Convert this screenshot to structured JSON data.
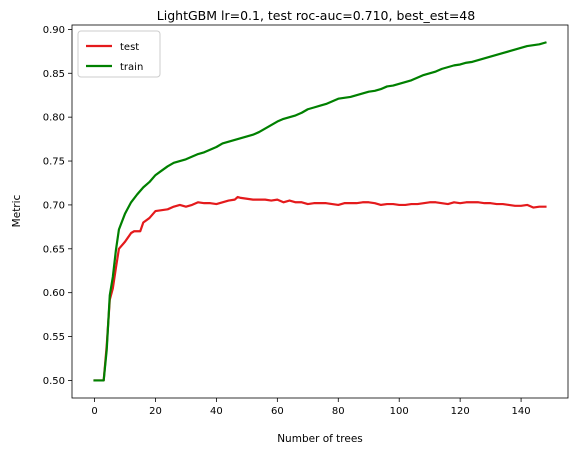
{
  "chart_data": {
    "type": "line",
    "title": "LightGBM lr=0.1, test roc-auc=0.710, best_est=48",
    "xlabel": "Number of trees",
    "ylabel": "Metric",
    "xlim": [
      -7.4,
      155.4
    ],
    "ylim": [
      0.48,
      0.905
    ],
    "xticks": [
      0,
      20,
      40,
      60,
      80,
      100,
      120,
      140
    ],
    "yticks": [
      0.5,
      0.55,
      0.6,
      0.65,
      0.7,
      0.75,
      0.8,
      0.85,
      0.9
    ],
    "ytick_labels": [
      "0.50",
      "0.55",
      "0.60",
      "0.65",
      "0.70",
      "0.75",
      "0.80",
      "0.85",
      "0.90"
    ],
    "grid": false,
    "legend_position": "upper-left",
    "series": [
      {
        "name": "test",
        "color": "#e41a1c",
        "x": [
          0,
          2,
          3,
          4,
          5,
          6,
          7,
          8,
          10,
          12,
          13,
          15,
          16,
          18,
          20,
          22,
          24,
          26,
          28,
          30,
          32,
          34,
          36,
          38,
          40,
          42,
          44,
          46,
          47,
          48,
          50,
          52,
          54,
          56,
          58,
          60,
          62,
          64,
          66,
          68,
          70,
          72,
          74,
          76,
          78,
          80,
          82,
          84,
          86,
          88,
          90,
          92,
          94,
          96,
          98,
          100,
          102,
          104,
          106,
          108,
          110,
          112,
          114,
          116,
          118,
          120,
          122,
          124,
          126,
          128,
          130,
          132,
          134,
          136,
          138,
          140,
          142,
          144,
          146,
          148
        ],
        "y": [
          0.5,
          0.5,
          0.5,
          0.54,
          0.592,
          0.605,
          0.628,
          0.65,
          0.658,
          0.668,
          0.67,
          0.67,
          0.68,
          0.685,
          0.693,
          0.694,
          0.695,
          0.698,
          0.7,
          0.698,
          0.7,
          0.703,
          0.702,
          0.702,
          0.701,
          0.703,
          0.705,
          0.706,
          0.709,
          0.708,
          0.707,
          0.706,
          0.706,
          0.706,
          0.705,
          0.706,
          0.703,
          0.705,
          0.703,
          0.703,
          0.701,
          0.702,
          0.702,
          0.702,
          0.701,
          0.7,
          0.702,
          0.702,
          0.702,
          0.703,
          0.703,
          0.702,
          0.7,
          0.701,
          0.701,
          0.7,
          0.7,
          0.701,
          0.701,
          0.702,
          0.703,
          0.703,
          0.702,
          0.701,
          0.703,
          0.702,
          0.703,
          0.703,
          0.703,
          0.702,
          0.702,
          0.701,
          0.701,
          0.7,
          0.699,
          0.699,
          0.7,
          0.697,
          0.698,
          0.698
        ]
      },
      {
        "name": "train",
        "color": "#008000",
        "x": [
          0,
          2,
          3,
          4,
          5,
          6,
          7,
          8,
          10,
          12,
          14,
          16,
          18,
          20,
          22,
          24,
          26,
          28,
          30,
          32,
          34,
          36,
          38,
          40,
          42,
          44,
          46,
          48,
          50,
          52,
          54,
          56,
          58,
          60,
          62,
          64,
          66,
          68,
          70,
          72,
          74,
          76,
          78,
          80,
          82,
          84,
          86,
          88,
          90,
          92,
          94,
          96,
          98,
          100,
          102,
          104,
          106,
          108,
          110,
          112,
          114,
          116,
          118,
          120,
          122,
          124,
          126,
          128,
          130,
          132,
          134,
          136,
          138,
          140,
          142,
          144,
          146,
          148
        ],
        "y": [
          0.5,
          0.5,
          0.5,
          0.535,
          0.597,
          0.618,
          0.648,
          0.672,
          0.69,
          0.703,
          0.712,
          0.72,
          0.726,
          0.734,
          0.739,
          0.744,
          0.748,
          0.75,
          0.752,
          0.755,
          0.758,
          0.76,
          0.763,
          0.766,
          0.77,
          0.772,
          0.774,
          0.776,
          0.778,
          0.78,
          0.783,
          0.787,
          0.791,
          0.795,
          0.798,
          0.8,
          0.802,
          0.805,
          0.809,
          0.811,
          0.813,
          0.815,
          0.818,
          0.821,
          0.822,
          0.823,
          0.825,
          0.827,
          0.829,
          0.83,
          0.832,
          0.835,
          0.836,
          0.838,
          0.84,
          0.842,
          0.845,
          0.848,
          0.85,
          0.852,
          0.855,
          0.857,
          0.859,
          0.86,
          0.862,
          0.863,
          0.865,
          0.867,
          0.869,
          0.871,
          0.873,
          0.875,
          0.877,
          0.879,
          0.881,
          0.882,
          0.883,
          0.885
        ]
      }
    ]
  }
}
